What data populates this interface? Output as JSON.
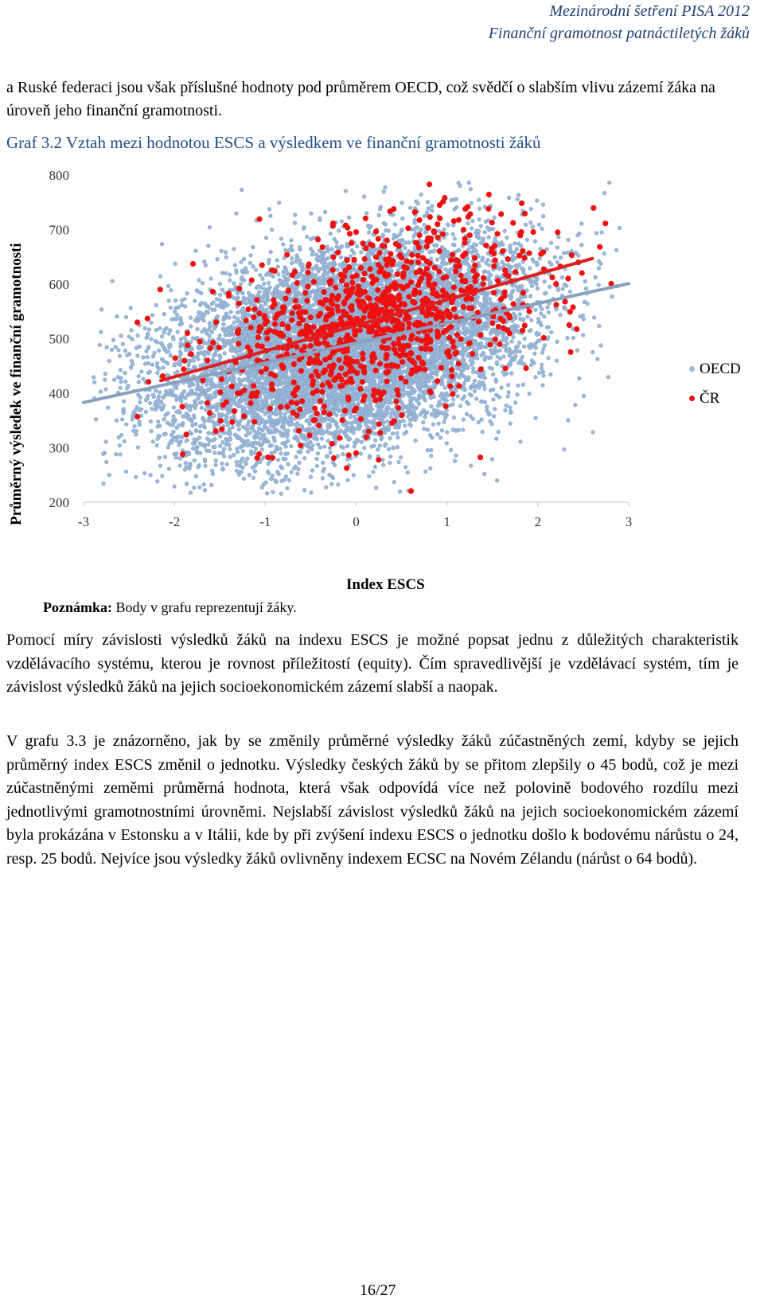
{
  "header": {
    "line1": "Mezinárodní šetření PISA 2012",
    "line2": "Finanční gramotnost patnáctiletých žáků"
  },
  "intro": "a Ruské federaci jsou však příslušné hodnoty pod průměrem OECD, což svědčí o slabším vlivu zázemí žáka na úroveň jeho finanční gramotnosti.",
  "graph_title": "Graf 3.2 Vztah mezi hodnotou ESCS a výsledkem ve finanční gramotnosti žáků",
  "chart_data": {
    "type": "scatter",
    "title": "Graf 3.2 Vztah mezi hodnotou ESCS a výsledkem ve finanční gramotnosti žáků",
    "xlabel": "Index ESCS",
    "ylabel": "Průměrný výsledek ve finanční gramotnosti",
    "xlim": [
      -3,
      3
    ],
    "ylim": [
      200,
      800
    ],
    "x_ticks": [
      "-3",
      "-2",
      "-1",
      "0",
      "1",
      "2",
      "3"
    ],
    "y_ticks": [
      "800",
      "700",
      "600",
      "500",
      "400",
      "300",
      "200"
    ],
    "grid": false,
    "legend_position": "right",
    "series": [
      {
        "name": "OECD",
        "color": "#9ab8d8",
        "n_points": 9000,
        "x_mean": -0.1,
        "x_sd": 1.0,
        "y_mean": 480,
        "y_sd": 95,
        "regression": {
          "x1": -3,
          "y1": 383,
          "x2": 3,
          "y2": 601,
          "color": "#8aa1bd"
        }
      },
      {
        "name": "ČR",
        "color": "#ee1111",
        "n_points": 1000,
        "x_mean": 0.25,
        "x_sd": 0.85,
        "y_mean": 518,
        "y_sd": 88,
        "regression": {
          "x1": -2.15,
          "y1": 423,
          "x2": 2.6,
          "y2": 647,
          "color": "#dd1f1f"
        }
      }
    ]
  },
  "note_label": "Poznámka:",
  "note_text": "Body v grafu reprezentují žáky.",
  "paragraph1": "Pomocí míry závislosti výsledků žáků na indexu ESCS je možné popsat jednu z důležitých charakteristik vzdělávacího systému, kterou je rovnost příležitostí (equity). Čím spravedlivější je vzdělávací systém, tím je závislost výsledků žáků na jejich socioekonomickém zázemí slabší a naopak.",
  "paragraph2": "V grafu 3.3 je znázorněno, jak by se změnily průměrné výsledky žáků zúčastněných zemí, kdyby se jejich průměrný index ESCS změnil o jednotku. Výsledky českých žáků by se přitom zlepšily o 45 bodů, což je mezi zúčastněnými zeměmi průměrná hodnota, která však odpovídá více než polovině bodového rozdílu mezi jednotlivými gramotnostními úrovněmi. Nejslabší závislost výsledků žáků na jejich socioekonomickém zázemí byla prokázána v Estonsku a v Itálii, kde by při zvýšení indexu ESCS o jednotku došlo k bodovému nárůstu o 24, resp. 25 bodů. Nejvíce jsou výsledky žáků ovlivněny indexem ECSC na Novém Zélandu (nárůst o 64 bodů).",
  "page_number": "16/27"
}
